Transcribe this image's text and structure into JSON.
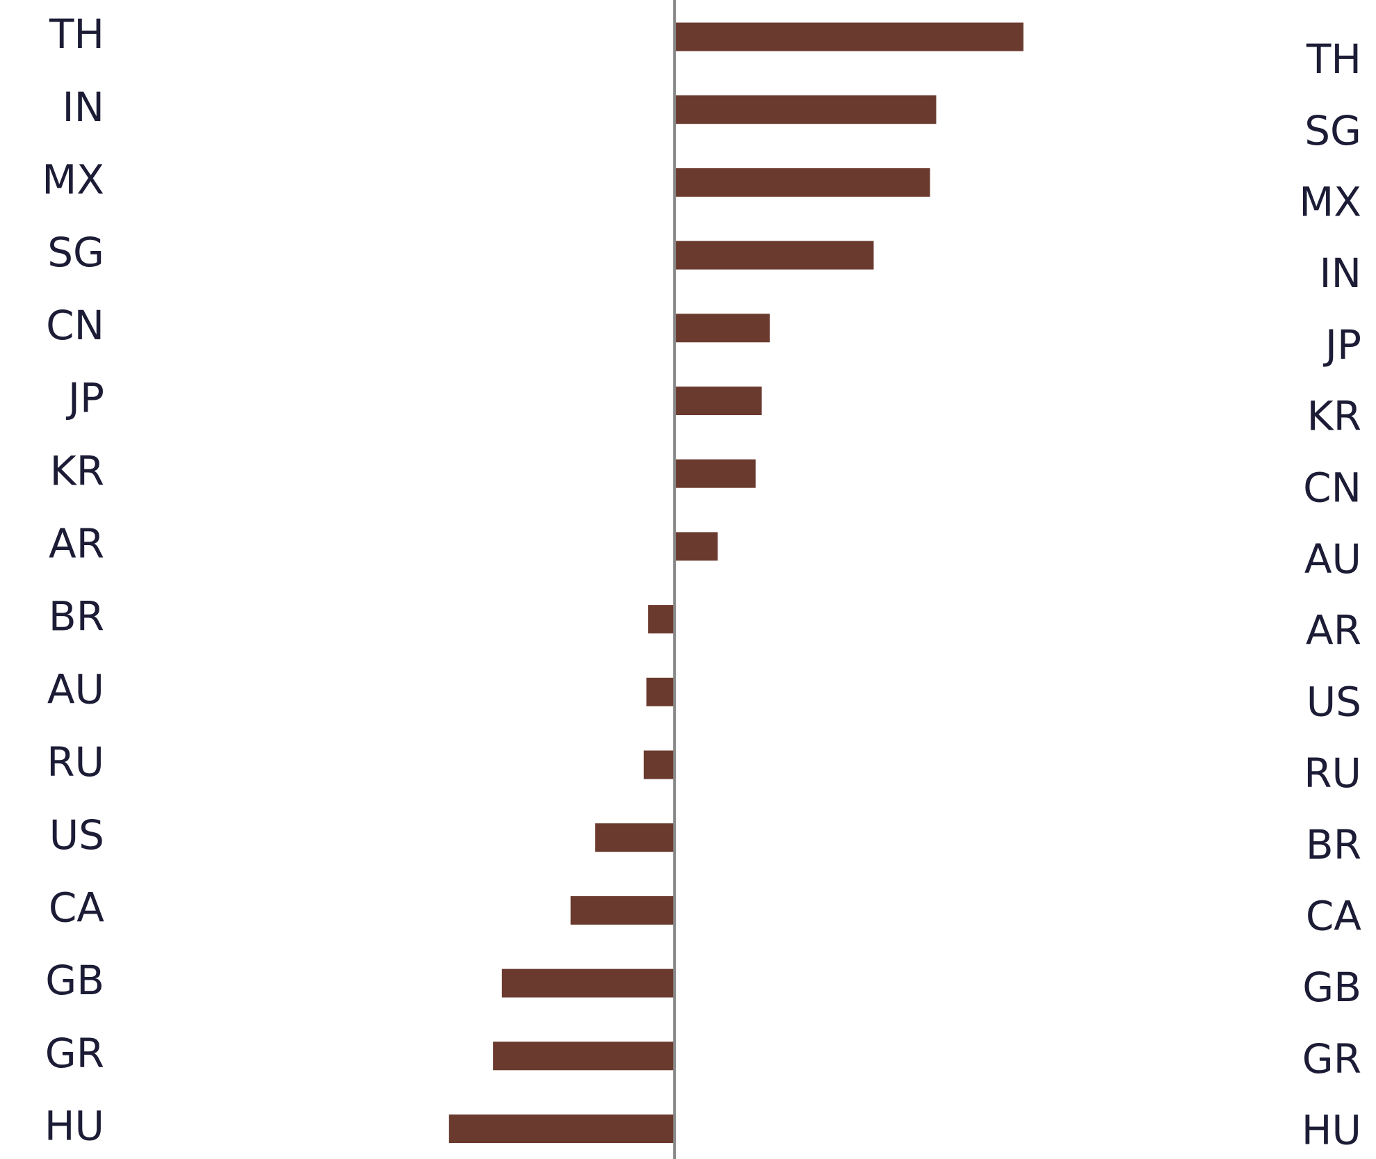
{
  "chart_data": {
    "type": "barh",
    "categories": [
      "TH",
      "IN",
      "MX",
      "SG",
      "CN",
      "JP",
      "KR",
      "AR",
      "BR",
      "AU",
      "RU",
      "US",
      "CA",
      "GB",
      "GR",
      "HU"
    ],
    "values": [
      3.96,
      2.97,
      2.9,
      2.26,
      1.08,
      0.99,
      0.92,
      0.49,
      -0.3,
      -0.32,
      -0.35,
      -0.9,
      -1.18,
      -1.96,
      -2.06,
      -2.56
    ],
    "color": "#6b3a2e",
    "xlim": [
      -3,
      4
    ],
    "right_categories": [
      "TH",
      "SG",
      "MX",
      "IN",
      "JP",
      "KR",
      "CN",
      "AU",
      "AR",
      "US",
      "RU",
      "BR",
      "CA",
      "GB",
      "GR",
      "HU"
    ]
  }
}
